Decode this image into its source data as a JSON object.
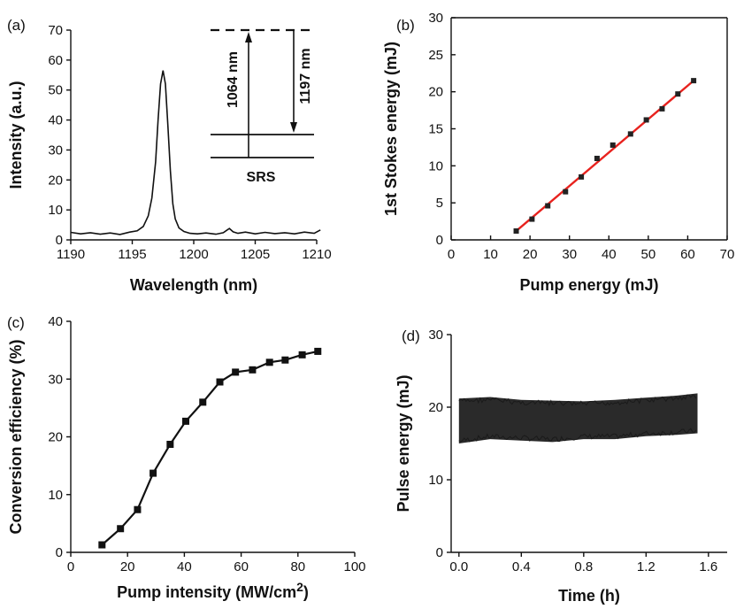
{
  "chart_data": [
    {
      "panel": "(a)",
      "type": "line",
      "xlabel": "Wavelength (nm)",
      "ylabel": "Intensity (a.u.)",
      "xlim": [
        1190,
        1210
      ],
      "ylim": [
        0,
        70
      ],
      "xticks": [
        "1190",
        "1195",
        "1200",
        "1205",
        "1210"
      ],
      "yticks": [
        "0",
        "10",
        "20",
        "30",
        "40",
        "50",
        "60",
        "70"
      ],
      "series": [
        {
          "x": [
            1190.0,
            1190.8,
            1191.6,
            1192.4,
            1193.2,
            1194.0,
            1194.8,
            1195.4,
            1195.9,
            1196.3,
            1196.6,
            1196.9,
            1197.1,
            1197.3,
            1197.5,
            1197.7,
            1197.9,
            1198.1,
            1198.3,
            1198.5,
            1198.8,
            1199.2,
            1199.7,
            1200.3,
            1201.0,
            1201.8,
            1202.4,
            1202.9,
            1203.2,
            1203.6,
            1204.2,
            1205.0,
            1205.8,
            1206.6,
            1207.4,
            1208.2,
            1209.0,
            1209.8,
            1210.3
          ],
          "y": [
            2.5,
            2.0,
            2.4,
            1.9,
            2.3,
            1.8,
            2.6,
            3.0,
            4.5,
            8.0,
            14.0,
            26.0,
            40.0,
            52.0,
            56.5,
            52.0,
            38.0,
            23.0,
            12.0,
            7.0,
            4.0,
            2.8,
            2.2,
            2.0,
            2.3,
            1.9,
            2.4,
            3.8,
            2.7,
            2.2,
            2.6,
            2.0,
            2.5,
            2.1,
            2.4,
            2.0,
            2.6,
            2.2,
            3.3
          ]
        }
      ],
      "inset": {
        "up_label": "1064 nm",
        "down_label": "1197 nm",
        "caption": "SRS"
      }
    },
    {
      "panel": "(b)",
      "type": "scatter",
      "xlabel": "Pump energy (mJ)",
      "ylabel": "1st Stokes energy (mJ)",
      "xlim": [
        0,
        70
      ],
      "ylim": [
        0,
        30
      ],
      "xticks": [
        "0",
        "10",
        "20",
        "30",
        "40",
        "50",
        "60",
        "70"
      ],
      "yticks": [
        "0",
        "5",
        "10",
        "15",
        "20",
        "25",
        "30"
      ],
      "series": [
        {
          "x": [
            16.5,
            20.5,
            24.5,
            29.0,
            33.0,
            37.0,
            41.0,
            45.5,
            49.5,
            53.5,
            57.5,
            61.5
          ],
          "y": [
            1.2,
            2.8,
            4.6,
            6.5,
            8.5,
            11.0,
            12.8,
            14.3,
            16.2,
            17.7,
            19.7,
            21.5
          ]
        }
      ],
      "fit": {
        "x": [
          16.5,
          61.5
        ],
        "y": [
          1.2,
          21.5
        ],
        "color": "#e8221e"
      }
    },
    {
      "panel": "(c)",
      "type": "line",
      "xlabel": "Pump intensity (MW/cm",
      "xlabel_sup": "2",
      "xlabel_end": ")",
      "ylabel": "Conversion efficiency (%)",
      "xlim": [
        0,
        100
      ],
      "ylim": [
        0,
        40
      ],
      "xticks": [
        "0",
        "20",
        "40",
        "60",
        "80",
        "100"
      ],
      "yticks": [
        "0",
        "10",
        "20",
        "30",
        "40"
      ],
      "series": [
        {
          "x": [
            11,
            17.5,
            23.5,
            29,
            35,
            40.5,
            46.5,
            52.5,
            58,
            64,
            70,
            75.5,
            81.5,
            87
          ],
          "y": [
            1.3,
            4.1,
            7.4,
            13.7,
            18.7,
            22.7,
            26.0,
            29.5,
            31.2,
            31.6,
            32.9,
            33.3,
            34.2,
            34.8
          ]
        }
      ]
    },
    {
      "panel": "(d)",
      "type": "line",
      "xlabel": "Time (h)",
      "ylabel": "Pulse energy (mJ)",
      "xlim": [
        -0.05,
        1.72
      ],
      "ylim": [
        0,
        30
      ],
      "xticks": [
        "0.0",
        "0.4",
        "0.8",
        "1.2",
        "1.6"
      ],
      "yticks": [
        "0",
        "10",
        "20",
        "30"
      ],
      "series": [
        {
          "x": [
            0.0,
            0.2,
            0.4,
            0.6,
            0.8,
            1.0,
            1.2,
            1.4,
            1.53
          ],
          "y_min": [
            15.0,
            15.6,
            15.4,
            15.2,
            15.6,
            15.6,
            16.0,
            16.2,
            16.4
          ],
          "y_max": [
            21.2,
            21.4,
            21.0,
            20.9,
            20.8,
            21.0,
            21.3,
            21.6,
            21.9
          ]
        }
      ]
    }
  ]
}
